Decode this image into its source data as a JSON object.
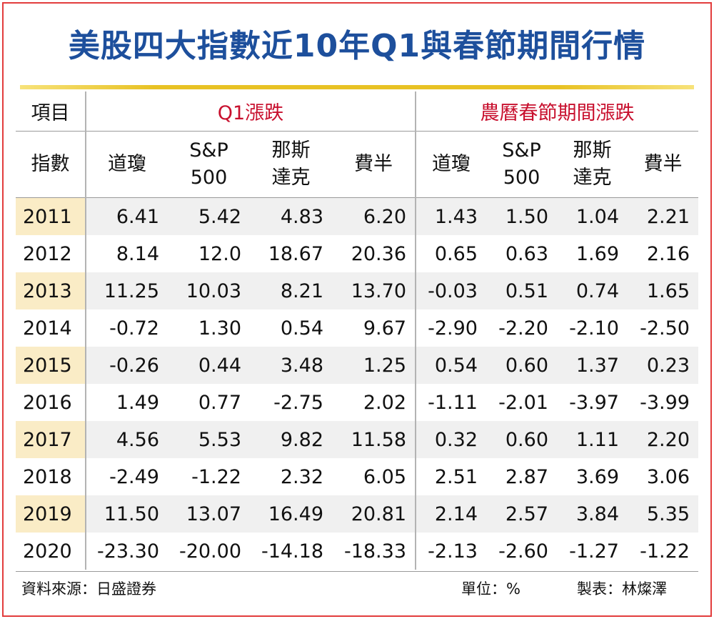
{
  "title": "美股四大指數近10年Q1與春節期間行情",
  "header": {
    "item_label": "項目",
    "group1": "Q1漲跌",
    "group2": "農曆春節期間漲跌",
    "index_label": "指數",
    "cols": [
      {
        "line1": "道瓊",
        "line2": ""
      },
      {
        "line1": "S&P",
        "line2": "500"
      },
      {
        "line1": "那斯",
        "line2": "達克"
      },
      {
        "line1": "費半",
        "line2": ""
      },
      {
        "line1": "道瓊",
        "line2": ""
      },
      {
        "line1": "S&P",
        "line2": "500"
      },
      {
        "line1": "那斯",
        "line2": "達克"
      },
      {
        "line1": "費半",
        "line2": ""
      }
    ]
  },
  "rows": [
    {
      "year": "2011",
      "values": [
        "6.41",
        "5.42",
        "4.83",
        "6.20",
        "1.43",
        "1.50",
        "1.04",
        "2.21"
      ]
    },
    {
      "year": "2012",
      "values": [
        "8.14",
        "12.0",
        "18.67",
        "20.36",
        "0.65",
        "0.63",
        "1.69",
        "2.16"
      ]
    },
    {
      "year": "2013",
      "values": [
        "11.25",
        "10.03",
        "8.21",
        "13.70",
        "-0.03",
        "0.51",
        "0.74",
        "1.65"
      ]
    },
    {
      "year": "2014",
      "values": [
        "-0.72",
        "1.30",
        "0.54",
        "9.67",
        "-2.90",
        "-2.20",
        "-2.10",
        "-2.50"
      ]
    },
    {
      "year": "2015",
      "values": [
        "-0.26",
        "0.44",
        "3.48",
        "1.25",
        "0.54",
        "0.60",
        "1.37",
        "0.23"
      ]
    },
    {
      "year": "2016",
      "values": [
        "1.49",
        "0.77",
        "-2.75",
        "2.02",
        "-1.11",
        "-2.01",
        "-3.97",
        "-3.99"
      ]
    },
    {
      "year": "2017",
      "values": [
        "4.56",
        "5.53",
        "9.82",
        "11.58",
        "0.32",
        "0.60",
        "1.11",
        "2.20"
      ]
    },
    {
      "year": "2018",
      "values": [
        "-2.49",
        "-1.22",
        "2.32",
        "6.05",
        "2.51",
        "2.87",
        "3.69",
        "3.06"
      ]
    },
    {
      "year": "2019",
      "values": [
        "11.50",
        "13.07",
        "16.49",
        "20.81",
        "2.14",
        "2.57",
        "3.84",
        "5.35"
      ]
    },
    {
      "year": "2020",
      "values": [
        "-23.30",
        "-20.00",
        "-14.18",
        "-18.33",
        "-2.13",
        "-2.60",
        "-1.27",
        "-1.22"
      ]
    }
  ],
  "footer": {
    "source": "資料來源：日盛證券",
    "unit": "單位：%",
    "maker": "製表：林燦澤"
  },
  "colors": {
    "title": "#1d4f9c",
    "group_header": "#c8102e",
    "frame": "#e23c3c",
    "year_highlight": "#faecc6",
    "row_shade": "#f0f0f0"
  }
}
